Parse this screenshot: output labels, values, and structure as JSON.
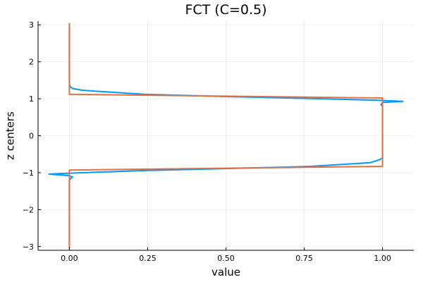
{
  "chart_data": {
    "type": "line",
    "title": "FCT (C=0.5)",
    "xlabel": "value",
    "ylabel": "z centers",
    "xlim": [
      -0.1,
      1.1
    ],
    "ylim": [
      -3.1,
      3.1
    ],
    "x_ticks": [
      0.0,
      0.25,
      0.5,
      0.75,
      1.0
    ],
    "x_tick_labels": [
      "0.00",
      "0.25",
      "0.50",
      "0.75",
      "1.00"
    ],
    "y_ticks": [
      -3,
      -2,
      -1,
      0,
      1,
      2,
      3
    ],
    "y_tick_labels": [
      "−3",
      "−2",
      "−1",
      "0",
      "1",
      "2",
      "3"
    ],
    "grid": true,
    "legend": "none",
    "colors": {
      "series1": "#009af9",
      "series2": "#e26f46"
    },
    "series": [
      {
        "color": "#009af9",
        "points": [
          [
            0.0,
            3.05
          ],
          [
            0.0,
            2.5
          ],
          [
            0.0,
            2.0
          ],
          [
            0.0,
            1.6
          ],
          [
            0.0,
            1.4
          ],
          [
            0.002,
            1.33
          ],
          [
            0.01,
            1.28
          ],
          [
            0.04,
            1.23
          ],
          [
            0.24,
            1.12
          ],
          [
            0.5,
            1.06
          ],
          [
            0.75,
            1.01
          ],
          [
            0.98,
            0.96
          ],
          [
            1.065,
            0.93
          ],
          [
            1.0,
            0.9
          ],
          [
            0.995,
            0.84
          ],
          [
            1.0,
            0.8
          ],
          [
            1.0,
            0.4
          ],
          [
            1.0,
            0.0
          ],
          [
            1.0,
            -0.4
          ],
          [
            1.0,
            -0.6
          ],
          [
            0.99,
            -0.65
          ],
          [
            0.96,
            -0.73
          ],
          [
            0.77,
            -0.83
          ],
          [
            0.5,
            -0.89
          ],
          [
            0.25,
            -0.94
          ],
          [
            0.01,
            -1.01
          ],
          [
            -0.065,
            -1.04
          ],
          [
            0.0,
            -1.08
          ],
          [
            0.01,
            -1.12
          ],
          [
            0.005,
            -1.15
          ],
          [
            0.0,
            -1.2
          ],
          [
            0.0,
            -1.6
          ],
          [
            0.0,
            -2.0
          ],
          [
            0.0,
            -2.5
          ],
          [
            0.0,
            -3.05
          ]
        ]
      },
      {
        "color": "#e26f46",
        "points": [
          [
            0.0,
            3.05
          ],
          [
            0.0,
            1.12
          ],
          [
            1.0,
            1.02
          ],
          [
            1.0,
            -0.83
          ],
          [
            0.0,
            -0.93
          ],
          [
            0.0,
            -3.05
          ]
        ]
      }
    ]
  }
}
